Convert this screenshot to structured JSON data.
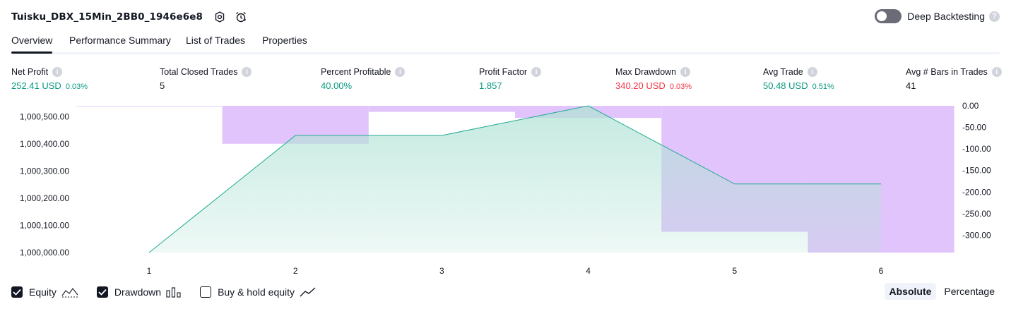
{
  "header": {
    "strategy_title": "Tuisku_DBX_15Min_2BB0_1946e6e8",
    "deep_backtesting_label": "Deep Backtesting",
    "deep_backtesting_on": false
  },
  "tabs": [
    {
      "label": "Overview",
      "active": true
    },
    {
      "label": "Performance Summary",
      "active": false
    },
    {
      "label": "List of Trades",
      "active": false
    },
    {
      "label": "Properties",
      "active": false
    }
  ],
  "metrics": [
    {
      "label": "Net Profit",
      "value": "252.41 USD",
      "sub": "0.03%",
      "color": "green"
    },
    {
      "label": "Total Closed Trades",
      "value": "5",
      "sub": "",
      "color": "dark"
    },
    {
      "label": "Percent Profitable",
      "value": "40.00%",
      "sub": "",
      "color": "green"
    },
    {
      "label": "Profit Factor",
      "value": "1.857",
      "sub": "",
      "color": "green"
    },
    {
      "label": "Max Drawdown",
      "value": "340.20 USD",
      "sub": "0.03%",
      "color": "red"
    },
    {
      "label": "Avg Trade",
      "value": "50.48 USD",
      "sub": "0.51%",
      "color": "green"
    },
    {
      "label": "Avg # Bars in Trades",
      "value": "41",
      "sub": "",
      "color": "dark"
    }
  ],
  "colors": {
    "equity_line": "#22ab94",
    "equity_fill_top": "#b2e3d6",
    "drawdown_fill": "#e1c4fb",
    "positive": "#089981",
    "negative": "#f23645"
  },
  "chart_data": {
    "type": "area",
    "x": [
      1,
      2,
      3,
      4,
      5,
      6
    ],
    "x_tick_labels": [
      "1",
      "2",
      "3",
      "4",
      "5",
      "6"
    ],
    "series": [
      {
        "name": "Equity",
        "axis": "left",
        "values": [
          1000000.0,
          1000431.0,
          1000431.0,
          1000540.0,
          1000252.4,
          1000252.4
        ]
      },
      {
        "name": "Drawdown",
        "axis": "right",
        "values": [
          0.0,
          -88.0,
          -14.0,
          -28.0,
          -292.0,
          -340.2
        ]
      }
    ],
    "left_axis": {
      "ticks": [
        1000000.0,
        1000100.0,
        1000200.0,
        1000300.0,
        1000400.0,
        1000500.0
      ],
      "tick_labels": [
        "1,000,000.00",
        "1,000,100.00",
        "1,000,200.00",
        "1,000,300.00",
        "1,000,400.00",
        "1,000,500.00"
      ],
      "ylim": [
        1000000.0,
        1000540.0
      ]
    },
    "right_axis": {
      "ticks": [
        0,
        -50,
        -100,
        -150,
        -200,
        -250,
        -300
      ],
      "tick_labels": [
        "0.00",
        "-50.00",
        "-100.00",
        "-150.00",
        "-200.00",
        "-250.00",
        "-300.00"
      ],
      "ylim": [
        -340.2,
        0
      ]
    },
    "grid": false
  },
  "legend": [
    {
      "label": "Equity",
      "checked": true,
      "icon": "equity-icon"
    },
    {
      "label": "Drawdown",
      "checked": true,
      "icon": "drawdown-bars-icon"
    },
    {
      "label": "Buy & hold equity",
      "checked": false,
      "icon": "buy-hold-line-icon"
    }
  ],
  "modes": [
    {
      "label": "Absolute",
      "active": true
    },
    {
      "label": "Percentage",
      "active": false
    }
  ]
}
